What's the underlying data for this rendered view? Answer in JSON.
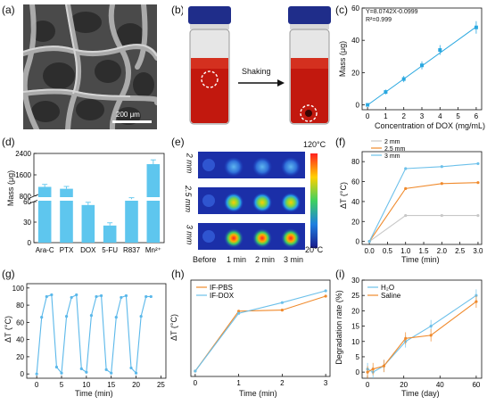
{
  "labels": {
    "a": "(a)",
    "b": "(b)",
    "c": "(c)",
    "d": "(d)",
    "e": "(e)",
    "f": "(f)",
    "g": "(g)",
    "h": "(h)",
    "i": "(i)"
  },
  "panel_a": {
    "scale": "200 μm"
  },
  "panel_b": {
    "arrow_label": "Shaking"
  },
  "panel_c": {
    "equation": "Y=8.0742X-0.0999",
    "r2": "R²=0.999",
    "xlabel": "Concentration of DOX (mg/mL)",
    "ylabel": "Mass  (μg)",
    "xticks": [
      "0",
      "1",
      "2",
      "3",
      "4",
      "5",
      "6"
    ],
    "yticks": [
      "0",
      "20",
      "40",
      "60"
    ]
  },
  "panel_d": {
    "ylabel": "Mass  (μg)",
    "yticks": [
      "0",
      "30",
      "60",
      "800",
      "1600",
      "2400"
    ],
    "categories": [
      "Ara-C",
      "PTX",
      "DOX",
      "5-FU",
      "R837",
      "Mn²⁺"
    ]
  },
  "panel_e": {
    "rows": [
      "2 mm",
      "2.5 mm",
      "3 mm"
    ],
    "cols": [
      "Before",
      "1 min",
      "2 min",
      "3 min"
    ],
    "scale_top": "120°C",
    "scale_bottom": "20°C"
  },
  "panel_f": {
    "ylabel": "ΔT (°C)",
    "xlabel": "Time (min)",
    "xticks": [
      "0.0",
      "0.5",
      "1.0",
      "1.5",
      "2.0",
      "2.5",
      "3.0"
    ],
    "yticks": [
      "0",
      "20",
      "40",
      "60",
      "80"
    ],
    "legend": [
      "2 mm",
      "2.5 mm",
      "3 mm"
    ]
  },
  "panel_g": {
    "ylabel": "ΔT (°C)",
    "xlabel": "Time (min)",
    "xticks": [
      "0",
      "5",
      "10",
      "15",
      "20",
      "25"
    ],
    "yticks": [
      "0",
      "20",
      "40",
      "60",
      "80",
      "100"
    ]
  },
  "panel_h": {
    "ylabel": "ΔT (°C)",
    "xlabel": "Time (min)",
    "xticks": [
      "0",
      "1",
      "2",
      "3"
    ],
    "legend": [
      "IF-PBS",
      "IF-DOX"
    ]
  },
  "panel_i": {
    "ylabel": "Degradation rate (%)",
    "xlabel": "Time (day)",
    "xticks": [
      "0",
      "20",
      "40",
      "60"
    ],
    "yticks": [
      "0",
      "5",
      "10",
      "15",
      "20",
      "25",
      "30"
    ],
    "legend": [
      "H₂O",
      "Saline"
    ]
  },
  "chart_data": [
    {
      "type": "scatter",
      "panel": "c",
      "title": "",
      "xlabel": "Concentration of DOX (mg/mL)",
      "ylabel": "Mass  (μg)",
      "x": [
        0,
        1,
        2,
        3,
        4,
        6
      ],
      "y": [
        0,
        8,
        16,
        24.5,
        34,
        48
      ],
      "fit": "Y=8.0742X-0.0999",
      "xlim": [
        -0.3,
        6.3
      ],
      "ylim": [
        -3,
        60
      ],
      "colors": {
        "points": "#2aa8e0",
        "line": "#2aa8e0"
      }
    },
    {
      "type": "bar",
      "panel": "d",
      "categories": [
        "Ara-C",
        "PTX",
        "DOX",
        "5-FU",
        "R837",
        "Mn²⁺"
      ],
      "values": [
        1150,
        1080,
        55,
        25,
        690,
        2000
      ],
      "ylabel": "Mass  (μg)",
      "colors": {
        "bar": "#5ec6ee"
      }
    },
    {
      "type": "line",
      "panel": "f",
      "xlabel": "Time (min)",
      "ylabel": "ΔT (°C)",
      "series": [
        {
          "name": "2 mm",
          "x": [
            0,
            1,
            2,
            3
          ],
          "values": [
            0,
            26,
            26,
            26
          ],
          "color": "#c8c8c8"
        },
        {
          "name": "2.5 mm",
          "x": [
            0,
            1,
            2,
            3
          ],
          "values": [
            0,
            53,
            58,
            59
          ],
          "color": "#f08a2c"
        },
        {
          "name": "3 mm",
          "x": [
            0,
            1,
            2,
            3
          ],
          "values": [
            0,
            73,
            75,
            78
          ],
          "color": "#6cc0ea"
        }
      ],
      "xlim": [
        -0.2,
        3.1
      ],
      "ylim": [
        -3,
        90
      ]
    },
    {
      "type": "line",
      "panel": "g",
      "xlabel": "Time (min)",
      "ylabel": "ΔT (°C)",
      "series": [
        {
          "name": "",
          "x": [
            0,
            1,
            2,
            3,
            4,
            5,
            6,
            7,
            8,
            9,
            10,
            11,
            12,
            13,
            14,
            15,
            16,
            17,
            18,
            19,
            20,
            21,
            22,
            23
          ],
          "values": [
            0,
            66,
            90,
            92,
            8,
            1,
            67,
            89,
            92,
            6,
            2,
            68,
            90,
            91,
            5,
            1,
            66,
            89,
            91,
            7,
            1,
            67,
            90,
            90
          ],
          "color": "#5bb8ea"
        }
      ],
      "xlim": [
        -2,
        26
      ],
      "ylim": [
        -5,
        105
      ]
    },
    {
      "type": "line",
      "panel": "h",
      "xlabel": "Time (min)",
      "ylabel": "ΔT (°C)",
      "series": [
        {
          "name": "IF-PBS",
          "x": [
            0,
            1,
            2,
            3
          ],
          "values": [
            0,
            56,
            57,
            70
          ],
          "color": "#f08a2c"
        },
        {
          "name": "IF-DOX",
          "x": [
            0,
            1,
            2,
            3
          ],
          "values": [
            0,
            54,
            64,
            75
          ],
          "color": "#6cc0ea"
        }
      ],
      "xlim": [
        -0.1,
        3.1
      ],
      "ylim": [
        -5,
        85
      ]
    },
    {
      "type": "line",
      "panel": "i",
      "xlabel": "Time (day)",
      "ylabel": "Degradation rate (%)",
      "series": [
        {
          "name": "H₂O",
          "x": [
            0,
            3,
            9,
            21,
            35,
            60
          ],
          "values": [
            1,
            0,
            2,
            10,
            15,
            25
          ],
          "color": "#6cc0ea"
        },
        {
          "name": "Saline",
          "x": [
            0,
            3,
            9,
            21,
            35,
            60
          ],
          "values": [
            0,
            1,
            2,
            11,
            12,
            23
          ],
          "color": "#f08a2c"
        }
      ],
      "xlim": [
        -3,
        63
      ],
      "ylim": [
        -2,
        30
      ]
    }
  ]
}
